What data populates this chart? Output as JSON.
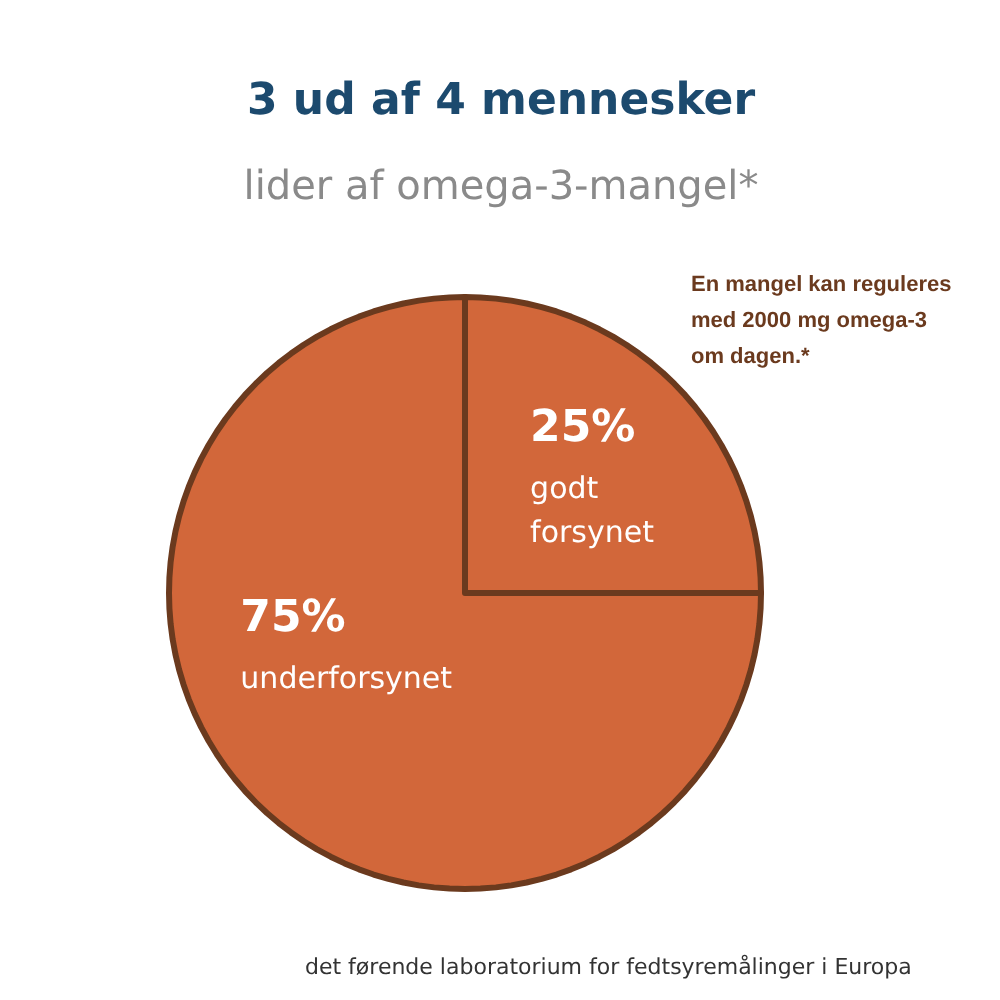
{
  "chart_data": {
    "type": "pie",
    "title": "3 ud af 4 mennesker",
    "subtitle": "lider af omega-3-mangel*",
    "categories": [
      "godt forsynet",
      "underforsynet"
    ],
    "values": [
      25,
      75
    ],
    "value_labels": [
      "25%",
      "75%"
    ],
    "colors": [
      "#d2673a",
      "#d2673a"
    ],
    "annotations": [
      "En mangel kan reguleres\nmed 2000 mg omega-3\nom dagen.*",
      "det førende laboratorium for fedtsyremålinger i Europa"
    ]
  }
}
